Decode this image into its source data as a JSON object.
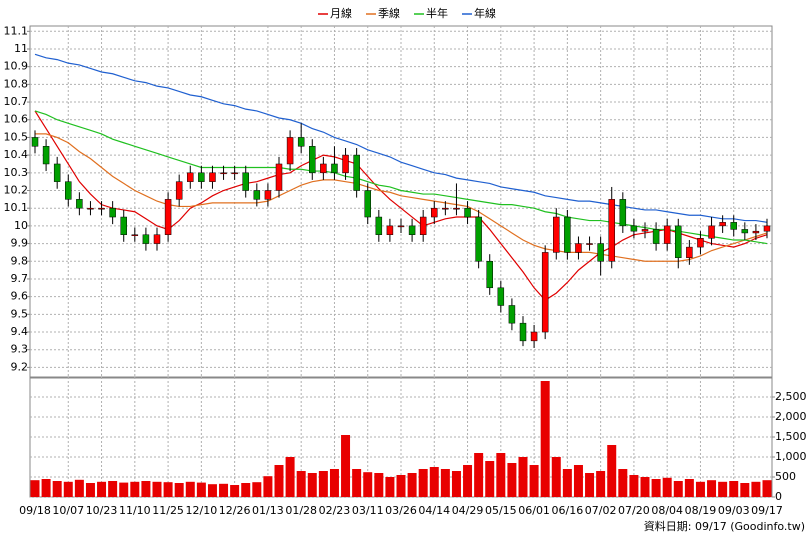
{
  "chart_data": [
    {
      "type": "candlestick",
      "categories": [
        "09/18",
        null,
        null,
        "10/07",
        null,
        null,
        "10/23",
        null,
        null,
        "11/10",
        null,
        null,
        "11/25",
        null,
        null,
        "12/10",
        null,
        null,
        "12/26",
        null,
        null,
        "01/13",
        null,
        null,
        "01/28",
        null,
        null,
        "02/23",
        null,
        null,
        "03/11",
        null,
        null,
        "03/26",
        null,
        null,
        "04/14",
        null,
        null,
        "04/29",
        null,
        null,
        "05/15",
        null,
        null,
        "06/01",
        null,
        null,
        "06/16",
        null,
        null,
        "07/02",
        null,
        null,
        "07/20",
        null,
        null,
        "08/04",
        null,
        null,
        "08/19",
        null,
        null,
        "09/03",
        null,
        null,
        "09/17"
      ],
      "open": [
        10.5,
        10.45,
        10.35,
        10.25,
        10.15,
        10.1,
        10.1,
        10.1,
        10.05,
        9.95,
        9.95,
        9.9,
        9.95,
        10.15,
        10.25,
        10.3,
        10.25,
        10.3,
        10.3,
        10.3,
        10.2,
        10.15,
        10.2,
        10.35,
        10.5,
        10.45,
        10.3,
        10.35,
        10.3,
        10.4,
        10.2,
        10.05,
        9.95,
        10.0,
        10.0,
        9.95,
        10.05,
        10.1,
        10.1,
        10.1,
        10.05,
        9.8,
        9.65,
        9.55,
        9.45,
        9.35,
        9.4,
        9.85,
        10.05,
        9.85,
        9.9,
        9.9,
        9.8,
        10.15,
        10.0,
        9.97,
        9.98,
        9.9,
        10.0,
        9.82,
        9.88,
        9.93,
        10.0,
        10.02,
        9.98,
        9.96,
        9.97
      ],
      "high": [
        10.54,
        10.49,
        10.39,
        10.29,
        10.19,
        10.14,
        10.14,
        10.14,
        10.09,
        9.99,
        9.99,
        9.99,
        10.19,
        10.29,
        10.34,
        10.34,
        10.34,
        10.34,
        10.34,
        10.34,
        10.24,
        10.24,
        10.39,
        10.54,
        10.58,
        10.49,
        10.39,
        10.45,
        10.44,
        10.44,
        10.24,
        10.09,
        10.04,
        10.04,
        10.04,
        10.09,
        10.14,
        10.14,
        10.24,
        10.14,
        10.09,
        9.84,
        9.69,
        9.59,
        9.49,
        9.44,
        9.89,
        10.1,
        10.09,
        9.94,
        9.94,
        9.94,
        10.22,
        10.19,
        10.04,
        10.02,
        10.02,
        10.04,
        10.04,
        9.92,
        9.97,
        10.05,
        10.06,
        10.06,
        10.02,
        10.01,
        10.04
      ],
      "low": [
        10.41,
        10.31,
        10.21,
        10.11,
        10.06,
        10.06,
        10.06,
        10.01,
        9.91,
        9.91,
        9.86,
        9.86,
        9.91,
        10.11,
        10.21,
        10.21,
        10.21,
        10.26,
        10.26,
        10.16,
        10.11,
        10.11,
        10.16,
        10.31,
        10.41,
        10.26,
        10.26,
        10.26,
        10.26,
        10.16,
        10.01,
        9.91,
        9.91,
        9.96,
        9.91,
        9.91,
        10.01,
        10.06,
        10.06,
        10.01,
        9.76,
        9.61,
        9.51,
        9.41,
        9.32,
        9.31,
        9.36,
        9.81,
        9.81,
        9.81,
        9.86,
        9.72,
        9.76,
        9.96,
        9.93,
        9.93,
        9.86,
        9.86,
        9.76,
        9.78,
        9.84,
        9.89,
        9.96,
        9.94,
        9.92,
        9.92,
        9.93
      ],
      "close": [
        10.45,
        10.35,
        10.25,
        10.15,
        10.1,
        10.1,
        10.1,
        10.05,
        9.95,
        9.95,
        9.9,
        9.95,
        10.15,
        10.25,
        10.3,
        10.25,
        10.3,
        10.3,
        10.3,
        10.2,
        10.15,
        10.2,
        10.35,
        10.5,
        10.45,
        10.3,
        10.35,
        10.3,
        10.4,
        10.2,
        10.05,
        9.95,
        10.0,
        10.0,
        9.95,
        10.05,
        10.1,
        10.1,
        10.1,
        10.05,
        9.8,
        9.65,
        9.55,
        9.45,
        9.35,
        9.4,
        9.85,
        10.05,
        9.85,
        9.9,
        9.9,
        9.8,
        10.15,
        10.0,
        9.97,
        9.98,
        9.9,
        10.0,
        9.82,
        9.88,
        9.93,
        10.0,
        10.02,
        9.98,
        9.96,
        9.97,
        10.0
      ],
      "up_color": "#ff0000",
      "down_color": "#00a000",
      "series": [
        {
          "name": "月線",
          "color": "#e00000",
          "values": [
            10.65,
            10.55,
            10.45,
            10.35,
            10.25,
            10.18,
            10.12,
            10.1,
            10.09,
            10.08,
            10.04,
            10.0,
            9.98,
            10.03,
            10.1,
            10.13,
            10.17,
            10.2,
            10.22,
            10.24,
            10.25,
            10.27,
            10.29,
            10.3,
            10.34,
            10.37,
            10.4,
            10.39,
            10.37,
            10.35,
            10.28,
            10.21,
            10.15,
            10.1,
            10.05,
            10.0,
            10.02,
            10.04,
            10.05,
            10.05,
            10.05,
            9.98,
            9.9,
            9.82,
            9.74,
            9.65,
            9.58,
            9.62,
            9.68,
            9.75,
            9.8,
            9.85,
            9.88,
            9.92,
            9.95,
            9.96,
            9.97,
            9.98,
            9.96,
            9.94,
            9.92,
            9.9,
            9.89,
            9.88,
            9.9,
            9.93,
            9.95
          ]
        },
        {
          "name": "季線",
          "color": "#e07020",
          "values": [
            10.52,
            10.52,
            10.5,
            10.47,
            10.42,
            10.38,
            10.33,
            10.28,
            10.24,
            10.2,
            10.17,
            10.14,
            10.12,
            10.11,
            10.11,
            10.12,
            10.13,
            10.13,
            10.13,
            10.13,
            10.13,
            10.14,
            10.17,
            10.2,
            10.23,
            10.25,
            10.26,
            10.26,
            10.25,
            10.24,
            10.22,
            10.2,
            10.19,
            10.17,
            10.16,
            10.15,
            10.14,
            10.13,
            10.12,
            10.11,
            10.08,
            10.04,
            10.0,
            9.96,
            9.92,
            9.89,
            9.87,
            9.86,
            9.85,
            9.85,
            9.85,
            9.84,
            9.83,
            9.82,
            9.81,
            9.8,
            9.8,
            9.8,
            9.8,
            9.81,
            9.83,
            9.86,
            9.88,
            9.9,
            9.92,
            9.94,
            9.96
          ]
        },
        {
          "name": "半年",
          "color": "#20c020",
          "values": [
            10.65,
            10.63,
            10.6,
            10.58,
            10.56,
            10.54,
            10.52,
            10.49,
            10.47,
            10.45,
            10.43,
            10.41,
            10.39,
            10.37,
            10.35,
            10.33,
            10.33,
            10.33,
            10.33,
            10.33,
            10.33,
            10.33,
            10.33,
            10.32,
            10.32,
            10.31,
            10.31,
            10.3,
            10.28,
            10.27,
            10.25,
            10.23,
            10.22,
            10.2,
            10.19,
            10.18,
            10.18,
            10.17,
            10.16,
            10.15,
            10.14,
            10.13,
            10.12,
            10.12,
            10.11,
            10.1,
            10.08,
            10.07,
            10.05,
            10.04,
            10.03,
            10.03,
            10.02,
            10.01,
            10.0,
            9.99,
            9.98,
            9.98,
            9.97,
            9.96,
            9.95,
            9.94,
            9.93,
            9.92,
            9.92,
            9.91,
            9.9
          ]
        },
        {
          "name": "年線",
          "color": "#2060d0",
          "values": [
            10.97,
            10.95,
            10.94,
            10.92,
            10.91,
            10.89,
            10.87,
            10.86,
            10.84,
            10.82,
            10.81,
            10.79,
            10.78,
            10.76,
            10.74,
            10.73,
            10.71,
            10.69,
            10.68,
            10.66,
            10.65,
            10.63,
            10.61,
            10.6,
            10.58,
            10.55,
            10.53,
            10.5,
            10.48,
            10.46,
            10.43,
            10.41,
            10.39,
            10.36,
            10.34,
            10.32,
            10.3,
            10.29,
            10.27,
            10.26,
            10.25,
            10.24,
            10.22,
            10.21,
            10.2,
            10.19,
            10.17,
            10.16,
            10.15,
            10.14,
            10.14,
            10.13,
            10.12,
            10.11,
            10.1,
            10.09,
            10.09,
            10.08,
            10.07,
            10.06,
            10.06,
            10.05,
            10.04,
            10.04,
            10.03,
            10.03,
            10.02
          ]
        }
      ],
      "ylim": [
        9.14,
        11.13
      ],
      "yticks": [
        9.2,
        9.3,
        9.4,
        9.5,
        9.6,
        9.7,
        9.8,
        9.9,
        10,
        10.1,
        10.2,
        10.3,
        10.4,
        10.5,
        10.6,
        10.7,
        10.8,
        10.9,
        11,
        11.1
      ],
      "grid": true,
      "legend": "top"
    },
    {
      "type": "bar",
      "color": "#e80000",
      "values": [
        420,
        450,
        400,
        380,
        430,
        350,
        380,
        400,
        360,
        380,
        400,
        380,
        370,
        350,
        380,
        360,
        320,
        330,
        300,
        350,
        370,
        520,
        800,
        1000,
        650,
        600,
        650,
        700,
        1550,
        700,
        620,
        600,
        500,
        550,
        600,
        700,
        750,
        700,
        650,
        800,
        1100,
        900,
        1100,
        850,
        1000,
        800,
        2900,
        1000,
        700,
        800,
        600,
        650,
        1300,
        700,
        550,
        500,
        450,
        480,
        400,
        450,
        380,
        420,
        380,
        400,
        350,
        380,
        420
      ],
      "ylim": [
        0,
        3000
      ],
      "yticks": [
        0,
        500,
        {
          "value": 1000,
          "label": "1,000"
        },
        {
          "value": 1500,
          "label": "1,500"
        },
        {
          "value": 2000,
          "label": "2,000"
        },
        {
          "value": 2500,
          "label": "2,500"
        }
      ],
      "grid": true
    }
  ],
  "note": "資料日期: 09/17 (Goodinfo.tw)"
}
